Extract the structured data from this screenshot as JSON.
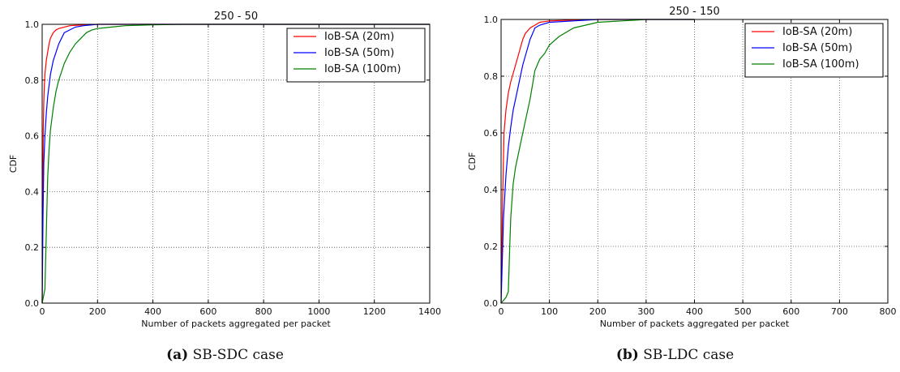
{
  "chart_data": [
    {
      "type": "line",
      "title": "250 - 50",
      "xlabel": "Number of packets aggregated per packet",
      "ylabel": "CDF",
      "xlim": [
        0,
        1400
      ],
      "ylim": [
        0,
        1.0
      ],
      "xticks": [
        "0",
        "200",
        "400",
        "600",
        "800",
        "1000",
        "1200",
        "1400"
      ],
      "yticks": [
        "0.0",
        "0.2",
        "0.4",
        "0.6",
        "0.8",
        "1.0"
      ],
      "grid": true,
      "legend_position": "top-right",
      "caption_label": "(a)",
      "caption_text": " SB-SDC case",
      "series": [
        {
          "name": "IoB-SA (20m)",
          "color": "#ff0000",
          "x": [
            0,
            2,
            4,
            6,
            8,
            10,
            15,
            20,
            25,
            30,
            40,
            50,
            60,
            80,
            100,
            150,
            200,
            300,
            1400
          ],
          "y": [
            0,
            0.4,
            0.62,
            0.72,
            0.78,
            0.82,
            0.87,
            0.9,
            0.93,
            0.95,
            0.97,
            0.98,
            0.985,
            0.99,
            0.995,
            0.998,
            1.0,
            1.0,
            1.0
          ]
        },
        {
          "name": "IoB-SA (50m)",
          "color": "#0000ff",
          "x": [
            0,
            3,
            6,
            10,
            15,
            20,
            25,
            30,
            40,
            50,
            60,
            70,
            80,
            100,
            120,
            150,
            200,
            300,
            1400
          ],
          "y": [
            0,
            0.3,
            0.5,
            0.6,
            0.68,
            0.74,
            0.78,
            0.82,
            0.87,
            0.9,
            0.93,
            0.95,
            0.97,
            0.98,
            0.99,
            0.995,
            1.0,
            1.0,
            1.0
          ]
        },
        {
          "name": "IoB-SA (100m)",
          "color": "#008000",
          "x": [
            0,
            10,
            15,
            20,
            25,
            30,
            40,
            50,
            60,
            80,
            100,
            120,
            140,
            160,
            180,
            200,
            250,
            300,
            400,
            500,
            1400
          ],
          "y": [
            0,
            0.05,
            0.25,
            0.45,
            0.55,
            0.62,
            0.7,
            0.76,
            0.8,
            0.86,
            0.9,
            0.93,
            0.95,
            0.97,
            0.98,
            0.985,
            0.99,
            0.995,
            0.998,
            1.0,
            1.0
          ]
        }
      ]
    },
    {
      "type": "line",
      "title": "250 - 150",
      "xlabel": "Number of packets aggregated per packet",
      "ylabel": "CDF",
      "xlim": [
        0,
        800
      ],
      "ylim": [
        0,
        1.0
      ],
      "xticks": [
        "0",
        "100",
        "200",
        "300",
        "400",
        "500",
        "600",
        "700",
        "800"
      ],
      "yticks": [
        "0.0",
        "0.2",
        "0.4",
        "0.6",
        "0.8",
        "1.0"
      ],
      "grid": true,
      "legend_position": "top-right",
      "caption_label": "(b)",
      "caption_text": " SB-LDC case",
      "series": [
        {
          "name": "IoB-SA (20m)",
          "color": "#ff0000",
          "x": [
            0,
            3,
            6,
            10,
            15,
            20,
            25,
            30,
            35,
            40,
            45,
            50,
            60,
            70,
            80,
            100,
            150,
            200,
            300,
            400
          ],
          "y": [
            0,
            0.35,
            0.6,
            0.68,
            0.74,
            0.78,
            0.81,
            0.84,
            0.87,
            0.9,
            0.93,
            0.95,
            0.97,
            0.98,
            0.99,
            0.995,
            0.998,
            1.0,
            1.0,
            1.0
          ]
        },
        {
          "name": "IoB-SA (50m)",
          "color": "#0000ff",
          "x": [
            0,
            5,
            10,
            15,
            20,
            25,
            30,
            35,
            40,
            45,
            50,
            55,
            60,
            65,
            70,
            80,
            100,
            150,
            200,
            300,
            400
          ],
          "y": [
            0,
            0.3,
            0.45,
            0.55,
            0.62,
            0.68,
            0.72,
            0.76,
            0.8,
            0.84,
            0.87,
            0.9,
            0.93,
            0.95,
            0.97,
            0.98,
            0.99,
            0.995,
            1.0,
            1.0,
            1.0
          ]
        },
        {
          "name": "IoB-SA (100m)",
          "color": "#008000",
          "x": [
            0,
            10,
            15,
            18,
            20,
            25,
            30,
            35,
            40,
            45,
            50,
            55,
            60,
            65,
            70,
            75,
            80,
            90,
            100,
            120,
            150,
            200,
            250,
            300,
            400
          ],
          "y": [
            0,
            0.02,
            0.04,
            0.2,
            0.3,
            0.42,
            0.48,
            0.52,
            0.56,
            0.6,
            0.64,
            0.68,
            0.72,
            0.77,
            0.82,
            0.84,
            0.86,
            0.88,
            0.91,
            0.94,
            0.97,
            0.99,
            0.995,
            1.0,
            1.0
          ]
        }
      ]
    }
  ]
}
